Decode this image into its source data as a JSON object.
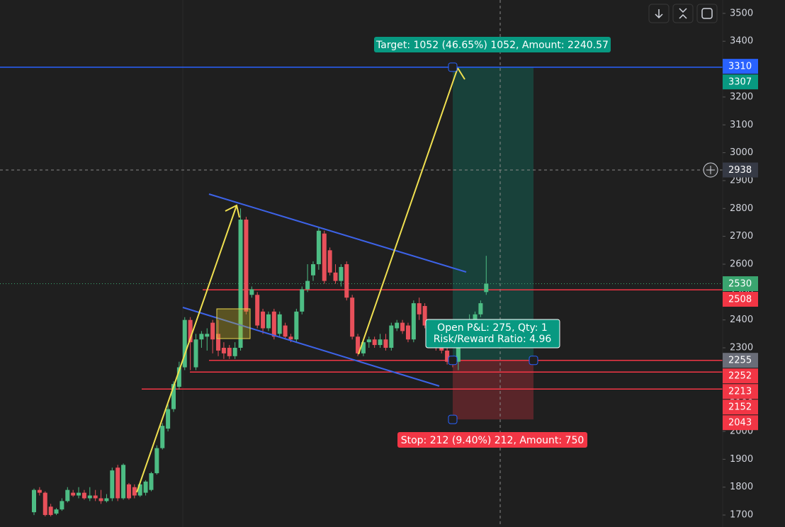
{
  "chart_data": {
    "type": "candlestick",
    "open": [
      1710,
      1790,
      1780,
      1730,
      1705,
      1720,
      1750,
      1780,
      1770,
      1780,
      1760,
      1770,
      1760,
      1750,
      1760,
      1870,
      1760,
      1810,
      1800,
      1770,
      1780,
      1790,
      1850,
      1940,
      2010,
      2080,
      2160,
      2230,
      2400,
      2230,
      2330,
      2340,
      2390,
      2350,
      2300,
      2300,
      2270,
      2300,
      2760,
      2490,
      2490,
      2430,
      2370,
      2430,
      2350,
      2380,
      2340,
      2330,
      2430,
      2510,
      2560,
      2600,
      2710,
      2650,
      2570,
      2540,
      2600,
      2480,
      2340,
      2280,
      2320,
      2330,
      2310,
      2330,
      2300,
      2370,
      2390,
      2380,
      2330,
      2460,
      2450,
      2380,
      2350,
      2320,
      2290,
      2260,
      2250,
      2310,
      2380,
      2400,
      2420,
      2500
    ],
    "high": [
      1795,
      1800,
      1785,
      1740,
      1725,
      1760,
      1800,
      1790,
      1800,
      1790,
      1800,
      1790,
      1790,
      1775,
      1870,
      1880,
      1885,
      1815,
      1810,
      1820,
      1825,
      1855,
      1950,
      2030,
      2100,
      2180,
      2250,
      2410,
      2410,
      2350,
      2360,
      2370,
      2400,
      2400,
      2320,
      2310,
      2320,
      2800,
      2770,
      2520,
      2500,
      2440,
      2430,
      2440,
      2430,
      2390,
      2350,
      2440,
      2520,
      2600,
      2610,
      2730,
      2720,
      2660,
      2600,
      2600,
      2610,
      2490,
      2350,
      2330,
      2340,
      2340,
      2350,
      2350,
      2390,
      2400,
      2400,
      2390,
      2470,
      2480,
      2460,
      2400,
      2360,
      2330,
      2300,
      2270,
      2320,
      2400,
      2420,
      2430,
      2470,
      2630
    ],
    "low": [
      1700,
      1770,
      1695,
      1695,
      1700,
      1715,
      1745,
      1765,
      1760,
      1755,
      1750,
      1750,
      1740,
      1745,
      1750,
      1750,
      1755,
      1755,
      1760,
      1765,
      1770,
      1785,
      1845,
      1935,
      2000,
      2070,
      2150,
      2220,
      2220,
      2220,
      2300,
      2290,
      2280,
      2270,
      2260,
      2260,
      2260,
      2290,
      2420,
      2480,
      2370,
      2350,
      2360,
      2330,
      2340,
      2330,
      2320,
      2320,
      2420,
      2500,
      2540,
      2580,
      2530,
      2560,
      2530,
      2520,
      2470,
      2330,
      2270,
      2270,
      2300,
      2300,
      2300,
      2290,
      2290,
      2360,
      2350,
      2320,
      2320,
      2400,
      2370,
      2340,
      2290,
      2280,
      2240,
      2230,
      2220,
      2300,
      2370,
      2390,
      2410,
      2490
    ],
    "close": [
      1790,
      1780,
      1700,
      1700,
      1720,
      1750,
      1790,
      1770,
      1780,
      1760,
      1770,
      1760,
      1750,
      1760,
      1860,
      1760,
      1880,
      1760,
      1770,
      1810,
      1820,
      1850,
      1940,
      2020,
      2080,
      2170,
      2230,
      2400,
      2320,
      2330,
      2350,
      2350,
      2330,
      2290,
      2280,
      2270,
      2300,
      2760,
      2430,
      2510,
      2380,
      2370,
      2420,
      2340,
      2420,
      2340,
      2330,
      2430,
      2510,
      2540,
      2600,
      2720,
      2540,
      2570,
      2540,
      2590,
      2480,
      2340,
      2280,
      2320,
      2330,
      2310,
      2330,
      2300,
      2380,
      2390,
      2360,
      2330,
      2460,
      2420,
      2380,
      2350,
      2300,
      2290,
      2250,
      2250,
      2310,
      2380,
      2400,
      2420,
      2460,
      2530
    ],
    "up_color": "#4dbd84",
    "down_color": "#e8505a",
    "ylim": [
      1657,
      3548
    ],
    "yticks": [
      1700,
      1800,
      1900,
      2000,
      2100,
      2200,
      2300,
      2400,
      2500,
      2600,
      2700,
      2800,
      2900,
      3000,
      3100,
      3200,
      3300,
      3400,
      3500
    ],
    "levels": [
      {
        "value": 3307,
        "color": "#2962ff"
      },
      {
        "value": 2508,
        "color": "#f23645"
      },
      {
        "value": 2255,
        "color": "#f23645"
      },
      {
        "value": 2213,
        "color": "#f23645"
      },
      {
        "value": 2152,
        "color": "#f23645"
      }
    ],
    "price_tags": [
      {
        "value": 3310,
        "color": "#2962ff"
      },
      {
        "value": 3307,
        "color": "#089981"
      },
      {
        "value": 2938,
        "color": "#363a45"
      },
      {
        "value": 2530,
        "color": "#3aa56f"
      },
      {
        "value": 2508,
        "color": "#f23645"
      },
      {
        "value": 2255,
        "color": "#6a6d78"
      },
      {
        "value": 2252,
        "color": "#f23645"
      },
      {
        "value": 2213,
        "color": "#f23645"
      },
      {
        "value": 2152,
        "color": "#f23645"
      },
      {
        "value": 2043,
        "color": "#f23645"
      }
    ],
    "crosshair": 2938,
    "last_price": 2530,
    "position": {
      "target": 3307,
      "entry": 2255,
      "stop": 2043,
      "target_label": "Target: 1052 (46.65%) 1052, Amount: 2240.57",
      "pnl_label": "Open P&L: 275, Qty: 1",
      "rr_label": "Risk/Reward Ratio: 4.96",
      "stop_label": "Stop: 212 (9.40%) 212, Amount: 750"
    }
  }
}
